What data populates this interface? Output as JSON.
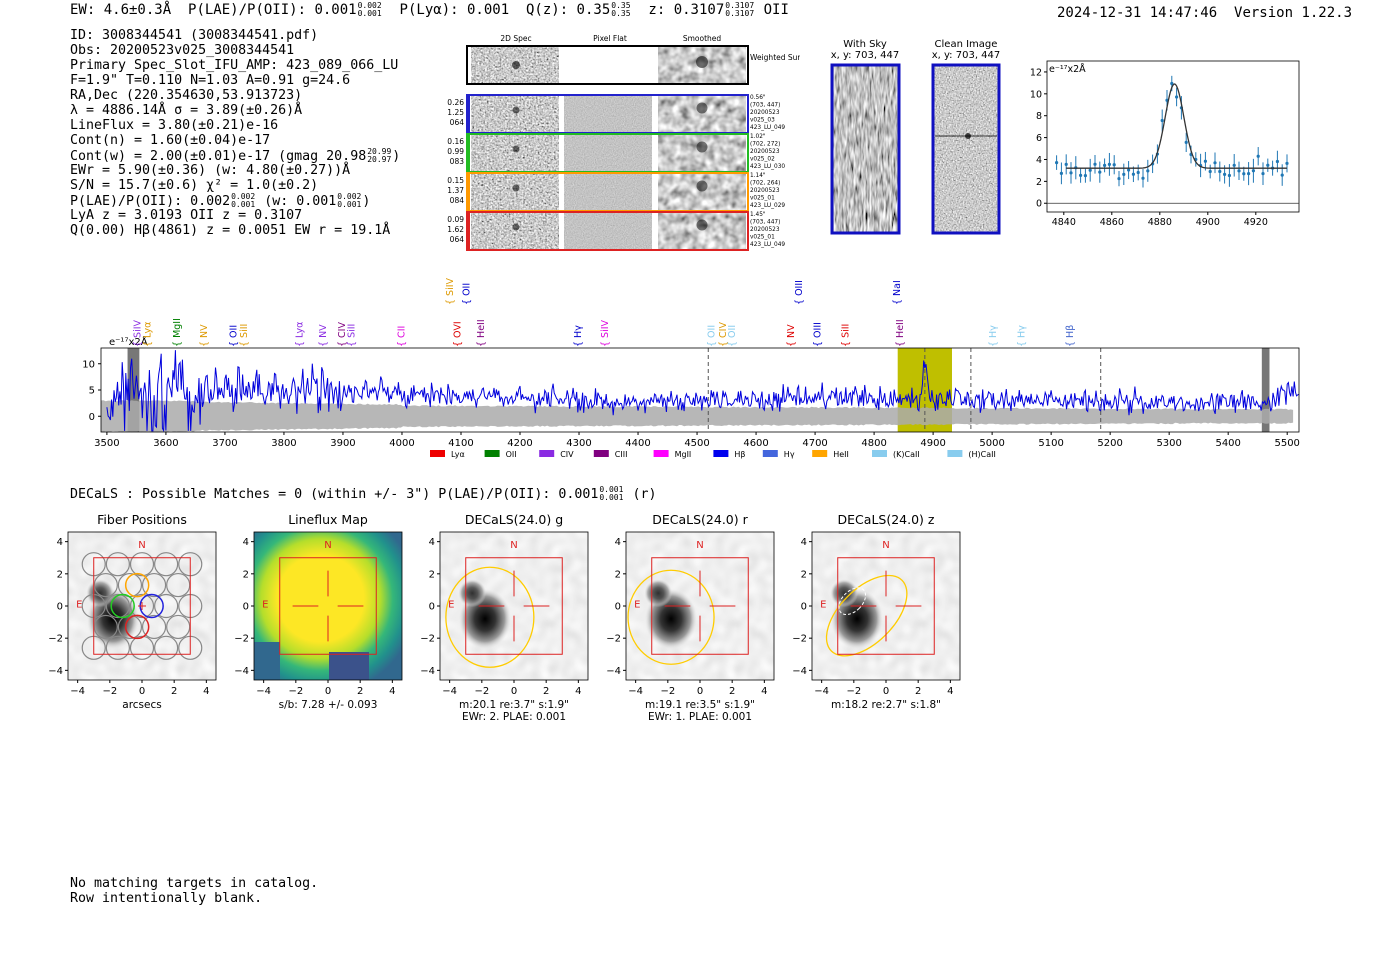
{
  "header": {
    "ew": "EW: 4.6±0.3Å",
    "plae": "P(LAE)/P(OII): 0.001",
    "plae_hi": "0.002",
    "plae_lo": "0.001",
    "plya": "P(Lyα): 0.001",
    "qz": "Q(z): 0.35",
    "qz_hi": "0.35",
    "qz_lo": "0.35",
    "z": "z: 0.3107",
    "z_hi": "0.3107",
    "z_lo": "0.3107",
    "z_line": "OII",
    "timestamp": "2024-12-31 14:47:46",
    "version": "Version 1.22.3"
  },
  "info": {
    "id": "ID: 3008344541 (3008344541.pdf)",
    "obs": "Obs: 20200523v025_3008344541",
    "slot": "Primary Spec_Slot_IFU_AMP: 423_089_066_LU",
    "params": "F=1.9\"  T=0.110  N=1.03  A=0.91  g=24.6",
    "radec": "RA,Dec (220.354630,53.913723)",
    "lambda": "λ = 4886.14Å  σ = 3.89(±0.26)Å",
    "lineflux": "LineFlux = 3.80(±0.21)e-16",
    "contn": "Cont(n) = 1.60(±0.04)e-17",
    "contw": "Cont(w) = 2.00(±0.01)e-17 (gmag 20.98",
    "contw_hi": "20.99",
    "contw_lo": "20.97",
    "ewr": "EWr = 5.90(±0.36) (w: 4.80(±0.27))Å",
    "sn": "S/N = 15.7(±0.6)  χ² = 1.0(±0.2)",
    "plae2": "P(LAE)/P(OII): 0.002",
    "plae2_hi": "0.002",
    "plae2_lo": "0.001",
    "plae2_w": "(w: 0.001",
    "plae2_w_hi": "0.002",
    "plae2_w_lo": "0.001",
    "lya": "LyA z = 3.0193  OII z = 0.3107",
    "q": "Q(0.00) Hβ(4861) z = 0.0051  EW r = 19.1Å"
  },
  "cutouts": {
    "col_2d": "2D Spec",
    "col_flat": "Pixel Flat",
    "col_smooth": "Smoothed",
    "weighted": "Weighted Sum",
    "rows": [
      {
        "vals": [
          "0.26",
          "1.25",
          "064"
        ],
        "color": "#2222cc",
        "notes": [
          "0.56\"",
          "(703, 447)",
          "20200523",
          "v025_03",
          "423_LU_049"
        ]
      },
      {
        "vals": [
          "0.16",
          "0.99",
          "083"
        ],
        "color": "#22bb22",
        "notes": [
          "1.02\"",
          "(702, 272)",
          "20200523",
          "v025_02",
          "423_LU_030"
        ]
      },
      {
        "vals": [
          "0.15",
          "1.37",
          "084"
        ],
        "color": "#ff9900",
        "notes": [
          "1.14\"",
          "(702, 264)",
          "20200523",
          "v025_01",
          "423_LU_029"
        ]
      },
      {
        "vals": [
          "0.09",
          "1.62",
          "064"
        ],
        "color": "#dd2222",
        "notes": [
          "1.45\"",
          "(703, 447)",
          "20200523",
          "v025_01",
          "423_LU_049"
        ]
      }
    ]
  },
  "sky_images": {
    "with_sky": "With Sky",
    "clean": "Clean Image",
    "coords": "x, y: 703, 447"
  },
  "fit_chart": {
    "ylabel": "e⁻¹⁷x2Å",
    "xticks": [
      4840,
      4860,
      4880,
      4900,
      4920
    ],
    "yticks": [
      0,
      2,
      4,
      6,
      8,
      10,
      12
    ],
    "xlim": [
      4833,
      4938
    ],
    "ylim": [
      -0.8,
      13
    ],
    "fit_center": 4886.14,
    "fit_sigma": 3.89,
    "fit_cont": 3.2,
    "fit_amp": 7.7
  },
  "spectrum": {
    "ylabel": "e⁻¹⁷x2Å",
    "xticks": [
      3500,
      3600,
      3700,
      3800,
      3900,
      4000,
      4100,
      4200,
      4300,
      4400,
      4500,
      4600,
      4700,
      4800,
      4900,
      5000,
      5100,
      5200,
      5300,
      5400,
      5500
    ],
    "yticks": [
      0,
      5,
      10
    ],
    "xlim": [
      3490,
      5520
    ],
    "ylim": [
      -3,
      13
    ],
    "highlight": [
      4840,
      4932
    ],
    "line_center": 4886.14,
    "dashed": [
      4519,
      4886,
      4964,
      5184
    ],
    "hatched": [
      [
        3535,
        3555
      ],
      [
        5457,
        5470
      ]
    ],
    "labels": [
      {
        "t": "SiIV",
        "x": 3553,
        "c": "#8a2be2",
        "row": 0
      },
      {
        "t": "Lyα",
        "x": 3570,
        "c": "#dd9900",
        "row": 0
      },
      {
        "t": "MgII",
        "x": 3620,
        "c": "#008000",
        "row": 0
      },
      {
        "t": "NV",
        "x": 3665,
        "c": "#dd9900",
        "row": 0
      },
      {
        "t": "OII",
        "x": 3715,
        "c": "#0000cc",
        "row": 0
      },
      {
        "t": "SiII",
        "x": 3733,
        "c": "#dd9900",
        "row": 0
      },
      {
        "t": "Lyα",
        "x": 3827,
        "c": "#8a2be2",
        "row": 0
      },
      {
        "t": "NV",
        "x": 3867,
        "c": "#8a2be2",
        "row": 0
      },
      {
        "t": "CIV",
        "x": 3899,
        "c": "#800080",
        "row": 0
      },
      {
        "t": "SiII",
        "x": 3915,
        "c": "#8a2be2",
        "row": 0
      },
      {
        "t": "CII",
        "x": 4000,
        "c": "#dd00dd",
        "row": 0
      },
      {
        "t": "OVI",
        "x": 4095,
        "c": "#dd0000",
        "row": 0
      },
      {
        "t": "HeII",
        "x": 4135,
        "c": "#800080",
        "row": 0
      },
      {
        "t": "Hγ",
        "x": 4299,
        "c": "#0000cc",
        "row": 0
      },
      {
        "t": "SiIV",
        "x": 4345,
        "c": "#dd00dd",
        "row": 0
      },
      {
        "t": "OII",
        "x": 4525,
        "c": "#88ccee",
        "row": 0
      },
      {
        "t": "CIV",
        "x": 4545,
        "c": "#dd9900",
        "row": 0
      },
      {
        "t": "OII",
        "x": 4560,
        "c": "#88ccee",
        "row": 0
      },
      {
        "t": "NV",
        "x": 4660,
        "c": "#dd0000",
        "row": 0
      },
      {
        "t": "OIII",
        "x": 4705,
        "c": "#0000cc",
        "row": 0
      },
      {
        "t": "SiII",
        "x": 4752,
        "c": "#dd0000",
        "row": 0
      },
      {
        "t": "HeII",
        "x": 4845,
        "c": "#800080",
        "row": 0
      },
      {
        "t": "Hγ",
        "x": 5002,
        "c": "#88ccee",
        "row": 0
      },
      {
        "t": "Hγ",
        "x": 5051,
        "c": "#88ccee",
        "row": 0
      },
      {
        "t": "Hβ",
        "x": 5133,
        "c": "#4466cc",
        "row": 0
      },
      {
        "t": "SiIV",
        "x": 4082,
        "c": "#dd9900",
        "row": 1
      },
      {
        "t": "OII",
        "x": 4110,
        "c": "#0000cc",
        "row": 1
      },
      {
        "t": "OIII",
        "x": 4674,
        "c": "#0000cc",
        "row": 1
      },
      {
        "t": "NaI",
        "x": 4840,
        "c": "#0000cc",
        "row": 1
      }
    ]
  },
  "legend": [
    {
      "label": "Lyα",
      "color": "#ee0000"
    },
    {
      "label": "OII",
      "color": "#008000"
    },
    {
      "label": "CIV",
      "color": "#8a2be2"
    },
    {
      "label": "CIII",
      "color": "#800080"
    },
    {
      "label": "MgII",
      "color": "#ff00ff"
    },
    {
      "label": "Hβ",
      "color": "#0000ee"
    },
    {
      "label": "Hγ",
      "color": "#4466dd"
    },
    {
      "label": "HeII",
      "color": "#ffa500"
    },
    {
      "label": "(K)CaII",
      "color": "#88ccee"
    },
    {
      "label": "(H)CaII",
      "color": "#88ccee"
    }
  ],
  "decals": {
    "line": "DECaLS : Possible Matches = 0 (within +/- 3\")  P(LAE)/P(OII): 0.001",
    "hi": "0.001",
    "lo": "0.001",
    "band": "(r)",
    "panels": [
      {
        "title": "Fiber Positions",
        "cap1": "arcsecs",
        "cap2": ""
      },
      {
        "title": "Lineflux Map",
        "cap1": "s/b: 7.28 +/- 0.093",
        "cap2": ""
      },
      {
        "title": "DECaLS(24.0) g",
        "cap1": "m:20.1  re:3.7\"  s:1.9\"",
        "cap2": "EWr: 2. PLAE: 0.001"
      },
      {
        "title": "DECaLS(24.0) r",
        "cap1": "m:19.1  re:3.5\"  s:1.9\"",
        "cap2": "EWr: 1. PLAE: 0.001"
      },
      {
        "title": "DECaLS(24.0) z",
        "cap1": "m:18.2  re:2.7\"  s:1.8\"",
        "cap2": ""
      }
    ],
    "ticks": [
      -4,
      -2,
      0,
      2,
      4
    ],
    "north": "N",
    "east": "E"
  },
  "footer": {
    "line1": "No matching targets in catalog.",
    "line2": "Row intentionally blank."
  }
}
